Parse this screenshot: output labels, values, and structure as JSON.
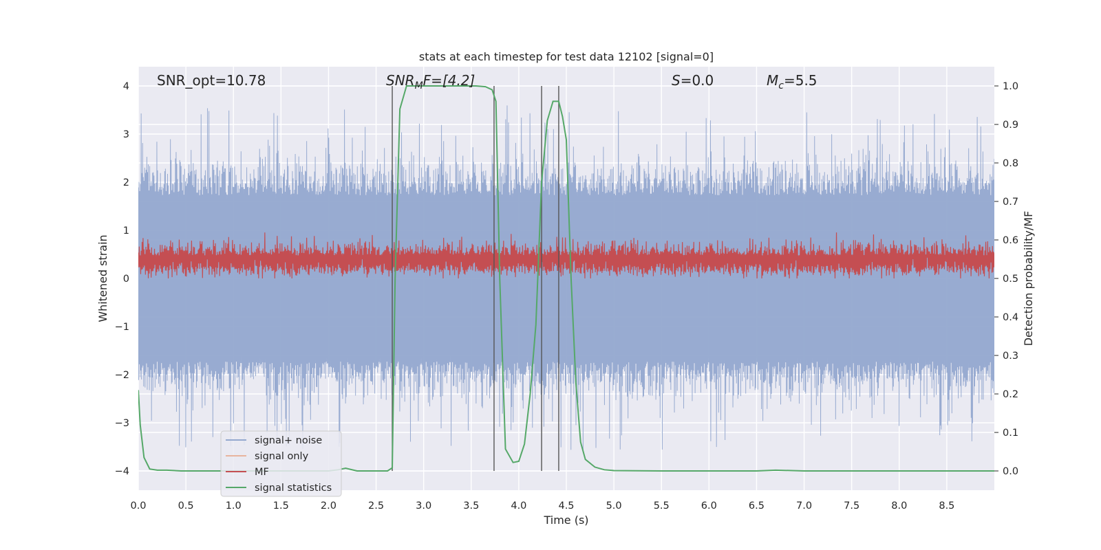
{
  "chart_data": {
    "type": "line",
    "title": "stats at each timestep for test data 12102 [signal=0]",
    "xlabel": "Time (s)",
    "ylabel": "Whitened strain",
    "y2label": "Detection probability/MF",
    "xlim": [
      0.0,
      9.0
    ],
    "ylim": [
      -4.4,
      4.4
    ],
    "y2lim": [
      -0.05,
      1.05
    ],
    "x_ticks": [
      "0.0",
      "0.5",
      "1.0",
      "1.5",
      "2.0",
      "2.5",
      "3.0",
      "3.5",
      "4.0",
      "4.5",
      "5.0",
      "5.5",
      "6.0",
      "6.5",
      "7.0",
      "7.5",
      "8.0",
      "8.5"
    ],
    "y_ticks": [
      "4",
      "3",
      "2",
      "1",
      "0",
      "−1",
      "−2",
      "−3",
      "−4"
    ],
    "y2_ticks": [
      "1.0",
      "0.9",
      "0.8",
      "0.7",
      "0.6",
      "0.5",
      "0.4",
      "0.3",
      "0.2",
      "0.1",
      "0.0"
    ],
    "annotations": {
      "snr_opt": "SNR_opt=10.78",
      "snr_mf_main": "SNR",
      "snr_mf_sub": "M",
      "snr_mf_rest": "F=[4.2]",
      "s_main": "S",
      "s_rest": "=0.0",
      "mc_main": "M",
      "mc_sub": "c",
      "mc_rest": "=5.5"
    },
    "legend": {
      "position": "lower-left",
      "items": [
        {
          "label": "signal+ noise",
          "color": "#94a8cf"
        },
        {
          "label": "signal only",
          "color": "#e8b49d"
        },
        {
          "label": "MF",
          "color": "#c44e52"
        },
        {
          "label": "signal statistics",
          "color": "#55a868"
        }
      ]
    },
    "vertical_lines_x": [
      2.67,
      3.74,
      4.24,
      4.42
    ],
    "series": [
      {
        "name": "signal+ noise",
        "color": "#94a8cf",
        "description": "dense whitened strain noise, band about -2.5..2.5 with spikes to about 3.6 / -4.0",
        "envelope": {
          "typical_amplitude": 2.4,
          "peak_max": 3.64,
          "peak_min": -4.0
        }
      },
      {
        "name": "MF",
        "color": "#c44e52",
        "description": "matched-filter output in strain units, baseline about 0.3, peaks near 1.0",
        "envelope": {
          "baseline": 0.3,
          "peak_max": 1.0,
          "min": 0.0
        }
      },
      {
        "name": "signal statistics",
        "axis": "y2",
        "color": "#55a868",
        "x": [
          0.0,
          0.02,
          0.06,
          0.12,
          0.2,
          0.3,
          0.45,
          0.8,
          1.2,
          1.6,
          2.0,
          2.1,
          2.18,
          2.3,
          2.5,
          2.62,
          2.67,
          2.7,
          2.75,
          2.82,
          3.0,
          3.4,
          3.55,
          3.65,
          3.72,
          3.76,
          3.8,
          3.86,
          3.94,
          4.0,
          4.06,
          4.12,
          4.18,
          4.24,
          4.3,
          4.36,
          4.42,
          4.46,
          4.5,
          4.55,
          4.6,
          4.65,
          4.7,
          4.8,
          4.9,
          5.0,
          5.5,
          6.0,
          6.5,
          6.7,
          7.0,
          8.0,
          9.0
        ],
        "values": [
          0.21,
          0.12,
          0.035,
          0.005,
          0.002,
          0.002,
          0.0,
          0.0,
          0.0,
          0.0,
          0.0,
          0.003,
          0.007,
          0.0,
          0.0,
          0.0,
          0.008,
          0.5,
          0.94,
          1.0,
          1.0,
          1.0,
          1.0,
          0.998,
          0.99,
          0.96,
          0.5,
          0.057,
          0.022,
          0.025,
          0.07,
          0.2,
          0.38,
          0.75,
          0.91,
          0.96,
          0.96,
          0.92,
          0.86,
          0.5,
          0.23,
          0.075,
          0.03,
          0.01,
          0.003,
          0.001,
          0.0,
          0.0,
          0.0,
          0.002,
          0.0,
          0.0,
          0.0
        ]
      }
    ]
  }
}
